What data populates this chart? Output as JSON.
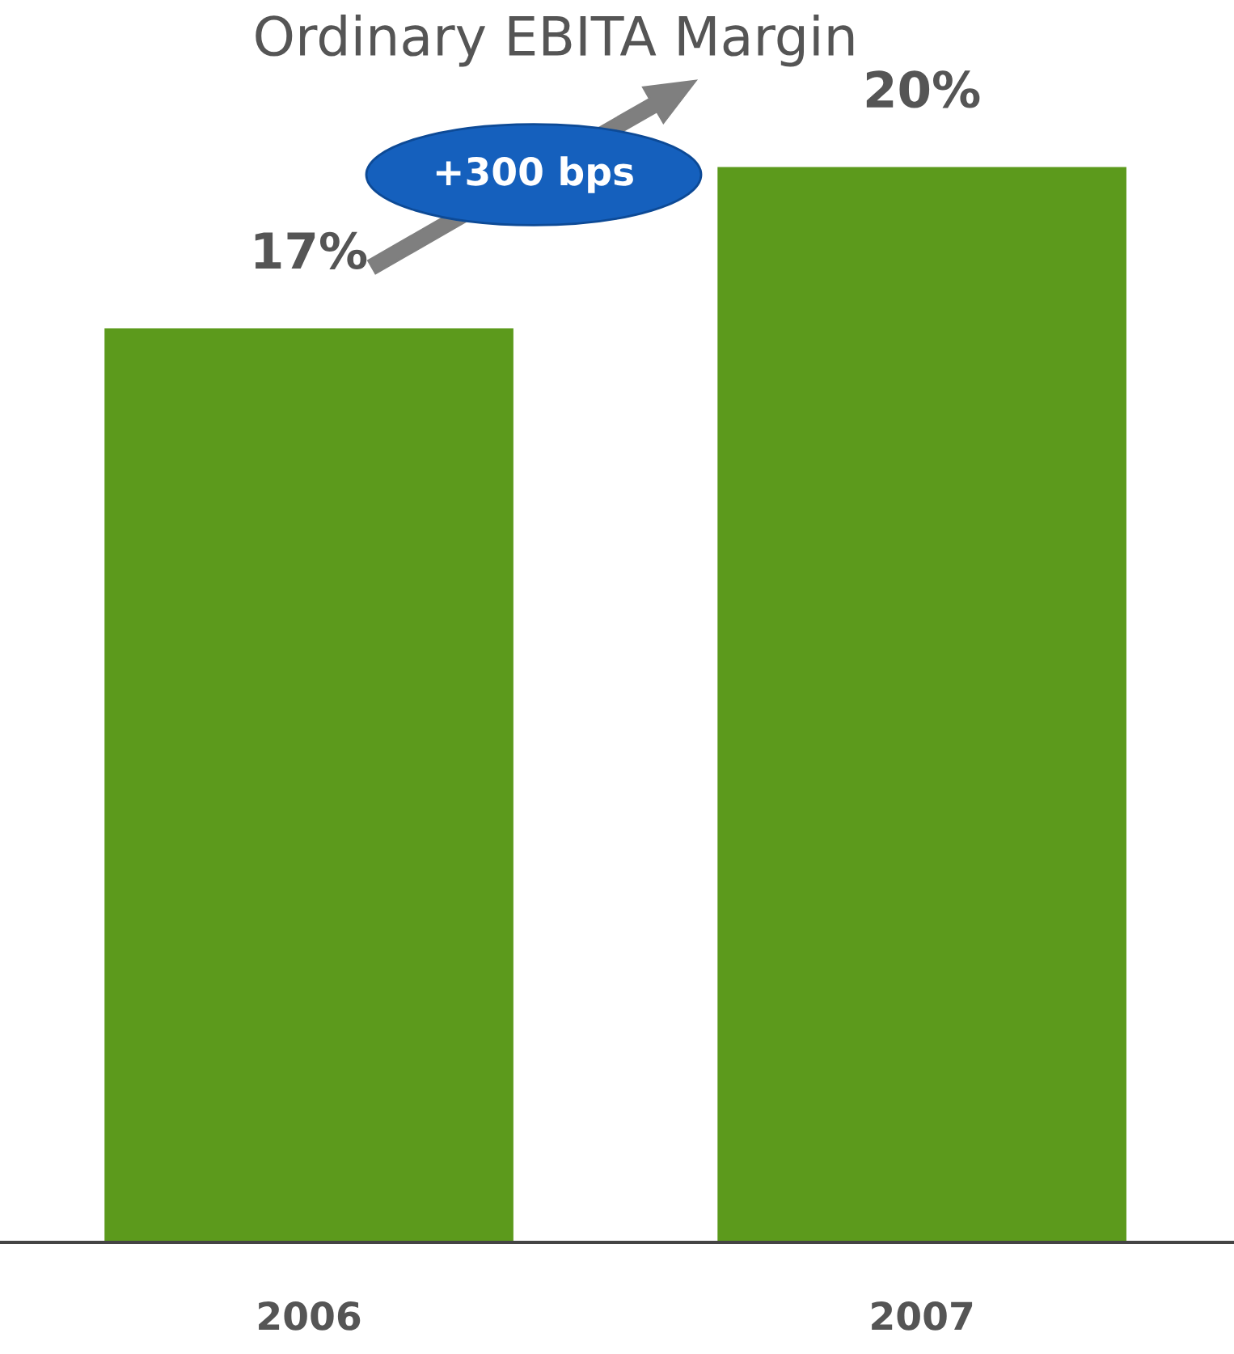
{
  "chart_data": {
    "type": "bar",
    "title": "Ordinary EBITA Margin",
    "categories": [
      "2006",
      "2007"
    ],
    "values": [
      17,
      20
    ],
    "value_labels": [
      "17%",
      "20%"
    ],
    "color": "#5c9a1c",
    "annotations": [
      "+300 bps"
    ],
    "grid": false,
    "legend": false
  }
}
